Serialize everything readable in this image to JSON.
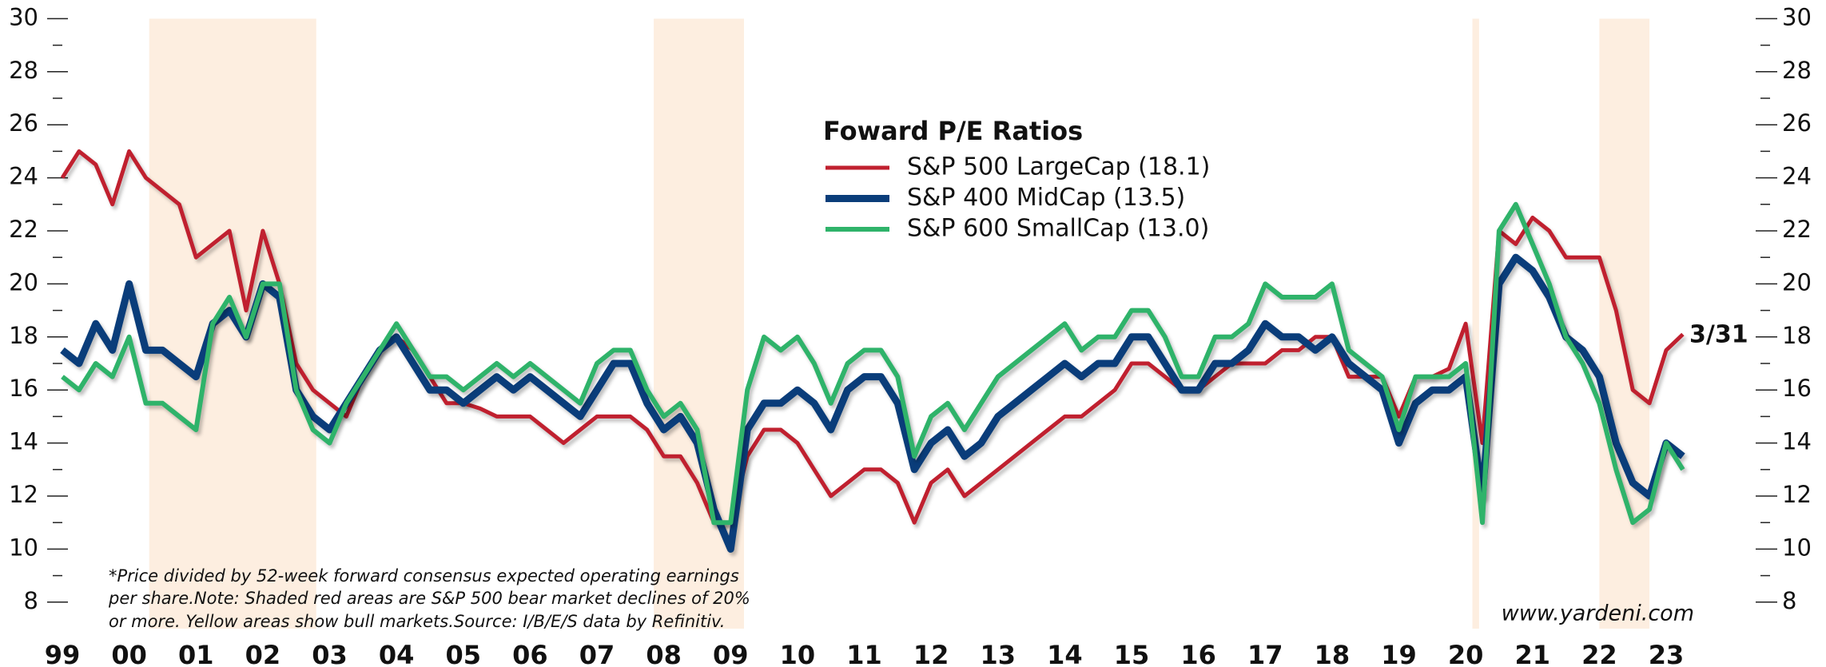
{
  "chart_data": {
    "type": "line",
    "legend_title": "Foward P/E Ratios",
    "annotation": "3/31",
    "source": "www.yardeni.com",
    "notes": [
      "*Price divided by 52-week forward consensus expected operating earnings",
      "per share.Note: Shaded red areas are S&P 500 bear market declines of 20%",
      "or more. Yellow areas show bull markets.Source: I/B/E/S data by Refinitiv."
    ],
    "shaded": [
      [
        2000.3,
        2002.8
      ],
      [
        2007.85,
        2009.2
      ],
      [
        2020.1,
        2020.2
      ],
      [
        2022.0,
        2022.75
      ]
    ],
    "shade_color": "#fdeee0",
    "xlim": [
      1999,
      2023
    ],
    "xticks": [
      {
        "value": 1999,
        "label": "99"
      },
      {
        "value": 2000,
        "label": "00"
      },
      {
        "value": 2001,
        "label": "01"
      },
      {
        "value": 2002,
        "label": "02"
      },
      {
        "value": 2003,
        "label": "03"
      },
      {
        "value": 2004,
        "label": "04"
      },
      {
        "value": 2005,
        "label": "05"
      },
      {
        "value": 2006,
        "label": "06"
      },
      {
        "value": 2007,
        "label": "07"
      },
      {
        "value": 2008,
        "label": "08"
      },
      {
        "value": 2009,
        "label": "09"
      },
      {
        "value": 2010,
        "label": "10"
      },
      {
        "value": 2011,
        "label": "11"
      },
      {
        "value": 2012,
        "label": "12"
      },
      {
        "value": 2013,
        "label": "13"
      },
      {
        "value": 2014,
        "label": "14"
      },
      {
        "value": 2015,
        "label": "15"
      },
      {
        "value": 2016,
        "label": "16"
      },
      {
        "value": 2017,
        "label": "17"
      },
      {
        "value": 2018,
        "label": "18"
      },
      {
        "value": 2019,
        "label": "19"
      },
      {
        "value": 2020,
        "label": "20"
      },
      {
        "value": 2021,
        "label": "21"
      },
      {
        "value": 2022,
        "label": "22"
      },
      {
        "value": 2023,
        "label": "23"
      }
    ],
    "ylim": [
      7,
      30
    ],
    "yticks": [
      8,
      10,
      12,
      14,
      16,
      18,
      20,
      22,
      24,
      26,
      28,
      30
    ],
    "yminorticks": [
      9,
      11,
      13,
      15,
      17,
      19,
      21,
      23,
      25,
      27,
      29
    ],
    "x": [
      1999,
      1999.25,
      1999.5,
      1999.75,
      2000,
      2000.25,
      2000.5,
      2000.75,
      2001,
      2001.25,
      2001.5,
      2001.75,
      2002,
      2002.25,
      2002.5,
      2002.75,
      2003,
      2003.25,
      2003.5,
      2003.75,
      2004,
      2004.25,
      2004.5,
      2004.75,
      2005,
      2005.25,
      2005.5,
      2005.75,
      2006,
      2006.25,
      2006.5,
      2006.75,
      2007,
      2007.25,
      2007.5,
      2007.75,
      2008,
      2008.25,
      2008.5,
      2008.75,
      2009,
      2009.25,
      2009.5,
      2009.75,
      2010,
      2010.25,
      2010.5,
      2010.75,
      2011,
      2011.25,
      2011.5,
      2011.75,
      2012,
      2012.25,
      2012.5,
      2012.75,
      2013,
      2013.25,
      2013.5,
      2013.75,
      2014,
      2014.25,
      2014.5,
      2014.75,
      2015,
      2015.25,
      2015.5,
      2015.75,
      2016,
      2016.25,
      2016.5,
      2016.75,
      2017,
      2017.25,
      2017.5,
      2017.75,
      2018,
      2018.25,
      2018.5,
      2018.75,
      2019,
      2019.25,
      2019.5,
      2019.75,
      2020,
      2020.25,
      2020.5,
      2020.75,
      2021,
      2021.25,
      2021.5,
      2021.75,
      2022,
      2022.25,
      2022.5,
      2022.75,
      2023,
      2023.25
    ],
    "series": [
      {
        "name": "S&P 500 LargeCap (18.1)",
        "color": "#c0202f",
        "width": 5,
        "values": [
          24,
          25,
          24.5,
          23,
          25,
          24,
          23.5,
          23,
          21,
          21.5,
          22,
          19,
          22,
          20,
          17,
          16,
          15.5,
          15,
          16.5,
          17.5,
          18,
          17.5,
          16.5,
          15.5,
          15.5,
          15.3,
          15,
          15,
          15,
          14.5,
          14,
          14.5,
          15,
          15,
          15,
          14.5,
          13.5,
          13.5,
          12.5,
          11,
          11,
          13.5,
          14.5,
          14.5,
          14,
          13,
          12,
          12.5,
          13,
          13,
          12.5,
          11,
          12.5,
          13,
          12,
          12.5,
          13,
          13.5,
          14,
          14.5,
          15,
          15,
          15.5,
          16,
          17,
          17,
          16.5,
          16,
          16,
          16.5,
          17,
          17,
          17,
          17.5,
          17.5,
          18,
          18,
          16.5,
          16.5,
          16.5,
          15,
          16.5,
          16.5,
          16.8,
          18.5,
          14,
          22,
          21.5,
          22.5,
          22,
          21,
          21,
          21,
          19,
          16,
          15.5,
          17.5,
          18.1
        ]
      },
      {
        "name": "S&P 400 MidCap (13.5)",
        "color": "#0a3d7a",
        "width": 9,
        "values": [
          17.5,
          17,
          18.5,
          17.5,
          20,
          17.5,
          17.5,
          17,
          16.5,
          18.5,
          19,
          18,
          20,
          19.5,
          16,
          15,
          14.5,
          15.5,
          16.5,
          17.5,
          18,
          17,
          16,
          16,
          15.5,
          16,
          16.5,
          16,
          16.5,
          16,
          15.5,
          15,
          16,
          17,
          17,
          15.5,
          14.5,
          15,
          14,
          11.5,
          10,
          14.5,
          15.5,
          15.5,
          16,
          15.5,
          14.5,
          16,
          16.5,
          16.5,
          15.5,
          13,
          14,
          14.5,
          13.5,
          14,
          15,
          15.5,
          16,
          16.5,
          17,
          16.5,
          17,
          17,
          18,
          18,
          17,
          16,
          16,
          17,
          17,
          17.5,
          18.5,
          18,
          18,
          17.5,
          18,
          17,
          16.5,
          16,
          14,
          15.5,
          16,
          16,
          16.5,
          12,
          20,
          21,
          20.5,
          19.5,
          18,
          17.5,
          16.5,
          14,
          12.5,
          12,
          14,
          13.5
        ]
      },
      {
        "name": "S&P 600 SmallCap (13.0)",
        "color": "#2fb36a",
        "width": 6,
        "values": [
          16.5,
          16,
          17,
          16.5,
          18,
          15.5,
          15.5,
          15,
          14.5,
          18.5,
          19.5,
          18,
          20,
          20,
          16,
          14.5,
          14,
          15.5,
          16.5,
          17.5,
          18.5,
          17.5,
          16.5,
          16.5,
          16,
          16.5,
          17,
          16.5,
          17,
          16.5,
          16,
          15.5,
          17,
          17.5,
          17.5,
          16,
          15,
          15.5,
          14.5,
          11,
          11,
          16,
          18,
          17.5,
          18,
          17,
          15.5,
          17,
          17.5,
          17.5,
          16.5,
          13.5,
          15,
          15.5,
          14.5,
          15.5,
          16.5,
          17,
          17.5,
          18,
          18.5,
          17.5,
          18,
          18,
          19,
          19,
          18,
          16.5,
          16.5,
          18,
          18,
          18.5,
          20,
          19.5,
          19.5,
          19.5,
          20,
          17.5,
          17,
          16.5,
          14.5,
          16.5,
          16.5,
          16.5,
          17,
          11,
          22,
          23,
          21.5,
          20,
          18,
          17,
          15.5,
          13,
          11,
          11.5,
          14,
          13
        ]
      }
    ]
  }
}
